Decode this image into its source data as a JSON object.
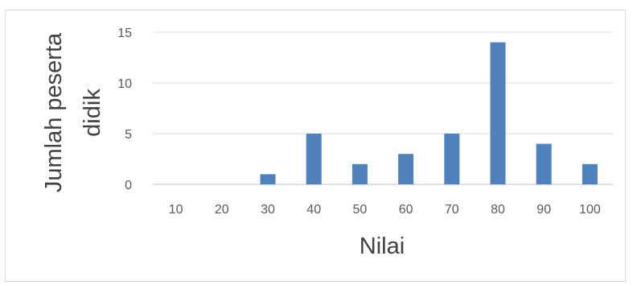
{
  "chart_data": {
    "type": "bar",
    "title": "",
    "xlabel": "Nilai",
    "ylabel_lines": [
      "Jumlah peserta",
      "didik"
    ],
    "categories": [
      "10",
      "20",
      "30",
      "40",
      "50",
      "60",
      "70",
      "80",
      "90",
      "100"
    ],
    "series": [
      {
        "values": [
          0,
          0,
          1,
          5,
          2,
          3,
          5,
          14,
          4,
          2
        ]
      }
    ],
    "ylim": [
      0,
      15
    ],
    "yticks": [
      0,
      5,
      10,
      15
    ],
    "grid": true,
    "legend": "none",
    "colors": {
      "bar": "#4f81bd",
      "grid": "#d9d9d9",
      "axis": "#bfbfbf"
    }
  }
}
